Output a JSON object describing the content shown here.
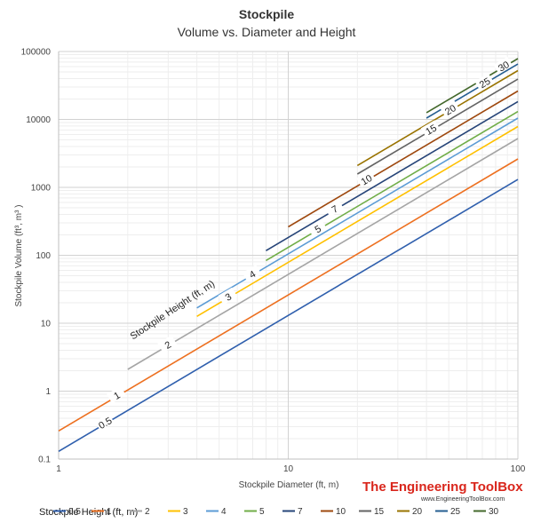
{
  "chart_data": {
    "type": "line",
    "title": "Stockpile",
    "subtitle": "Volume vs. Diameter and Height",
    "xlabel": "Stockpile Diameter (ft, m)",
    "ylabel": "Stockpile Volume (ft³, m³ )",
    "xscale": "log",
    "yscale": "log",
    "xlim": [
      1,
      100
    ],
    "ylim": [
      0.1,
      100000
    ],
    "x_ticks": [
      "1",
      "10",
      "100"
    ],
    "y_ticks": [
      "0.1",
      "1",
      "10",
      "100",
      "1000",
      "10000",
      "100000"
    ],
    "grid": true,
    "annotation": "Stockpile Height (ft, m)",
    "legend_title": "Stockpile Height (ft, m)",
    "legend_position": "bottom",
    "series": [
      {
        "name": "0.5",
        "color": "#2f5fad",
        "x": [
          1,
          100
        ],
        "y": [
          0.13,
          1309
        ]
      },
      {
        "name": "1",
        "color": "#ed7020",
        "x": [
          1,
          100
        ],
        "y": [
          0.26,
          2618
        ]
      },
      {
        "name": "2",
        "color": "#a5a5a5",
        "x": [
          2,
          100
        ],
        "y": [
          2.09,
          5236
        ]
      },
      {
        "name": "3",
        "color": "#ffc000",
        "x": [
          4,
          100
        ],
        "y": [
          12.6,
          7854
        ]
      },
      {
        "name": "4",
        "color": "#5b9bd5",
        "x": [
          4,
          100
        ],
        "y": [
          16.8,
          10472
        ]
      },
      {
        "name": "5",
        "color": "#70ad47",
        "x": [
          8,
          100
        ],
        "y": [
          83.8,
          13090
        ]
      },
      {
        "name": "7",
        "color": "#264478",
        "x": [
          8,
          100
        ],
        "y": [
          117,
          18326
        ]
      },
      {
        "name": "10",
        "color": "#9e480e",
        "x": [
          10,
          100
        ],
        "y": [
          262,
          26180
        ]
      },
      {
        "name": "15",
        "color": "#636363",
        "x": [
          20,
          100
        ],
        "y": [
          1571,
          39270
        ]
      },
      {
        "name": "20",
        "color": "#997300",
        "x": [
          20,
          100
        ],
        "y": [
          2094,
          52360
        ]
      },
      {
        "name": "25",
        "color": "#255e91",
        "x": [
          40,
          100
        ],
        "y": [
          10472,
          65450
        ]
      },
      {
        "name": "30",
        "color": "#43682b",
        "x": [
          40,
          100
        ],
        "y": [
          12566,
          78540
        ]
      }
    ]
  },
  "brand": {
    "name": "The Engineering ToolBox",
    "url": "www.EngineeringToolBox.com"
  }
}
